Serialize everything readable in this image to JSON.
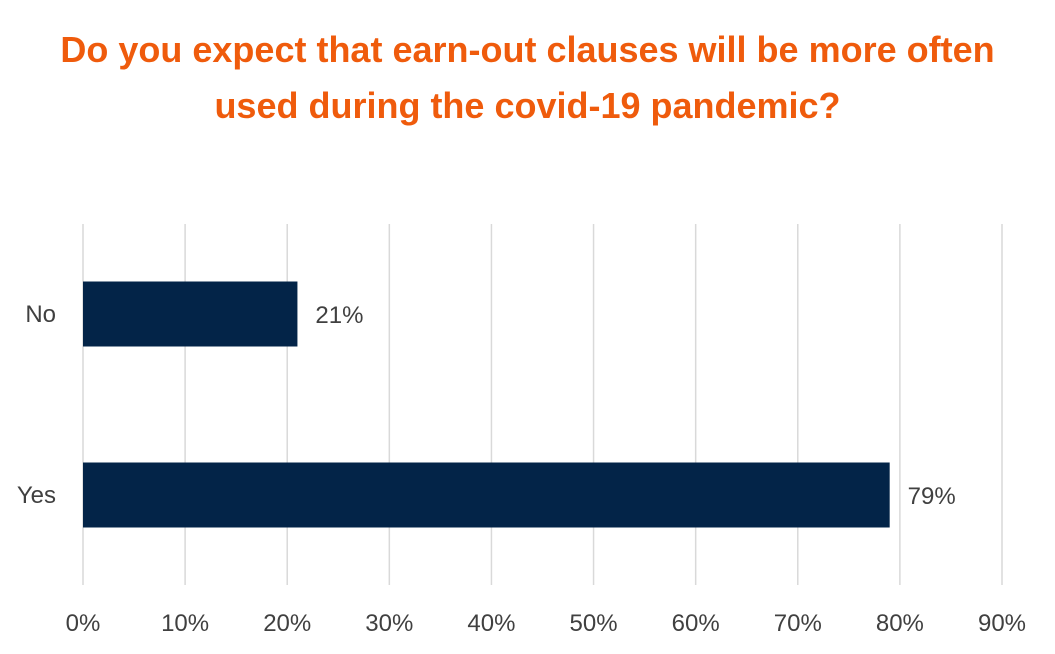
{
  "chart_data": {
    "type": "bar",
    "orientation": "horizontal",
    "title": "Do you expect that earn-out clauses will be more often used during the covid-19 pandemic?",
    "categories": [
      "No",
      "Yes"
    ],
    "values": [
      21,
      79
    ],
    "data_labels": [
      "21%",
      "79%"
    ],
    "xlabel": "",
    "ylabel": "",
    "xlim": [
      0,
      90
    ],
    "x_ticks": [
      "0%",
      "10%",
      "20%",
      "30%",
      "40%",
      "50%",
      "60%",
      "70%",
      "80%",
      "90%"
    ],
    "grid": "vertical",
    "legend": "none",
    "colors": {
      "title": "#ef5b0c",
      "bar": "#032448",
      "grid": "#d9d9d9",
      "text": "#404040"
    }
  }
}
